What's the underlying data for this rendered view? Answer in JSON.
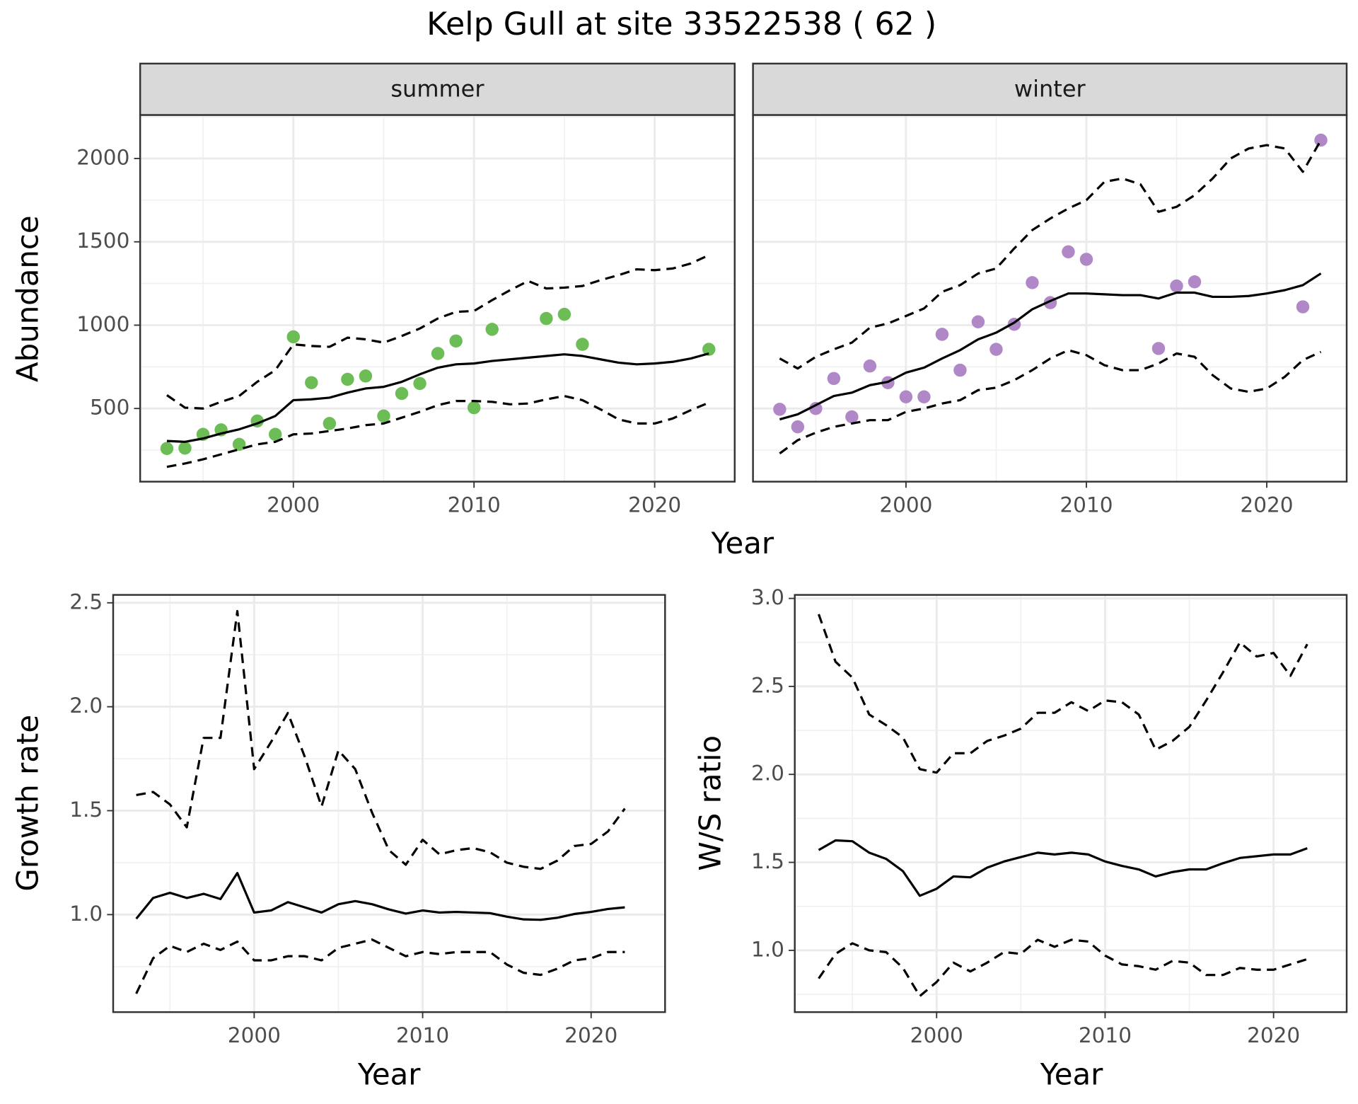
{
  "title": "Kelp Gull at site 33522538 ( 62 )",
  "chart_data": [
    {
      "type": "line",
      "strip": "summer",
      "xlabel": "Year",
      "ylabel": "Abundance",
      "grid": true,
      "minor_grid": true,
      "ytick_labels": true,
      "xlim": [
        1991.52,
        2024.43
      ],
      "ylim": [
        61,
        2261
      ],
      "xticks": [
        2000,
        2010,
        2020
      ],
      "yticks": [
        500,
        1000,
        1500,
        2000
      ],
      "x": [
        1993,
        1994,
        1995,
        1996,
        1997,
        1998,
        1999,
        2000,
        2001,
        2002,
        2003,
        2004,
        2005,
        2006,
        2007,
        2008,
        2009,
        2010,
        2011,
        2012,
        2013,
        2014,
        2015,
        2016,
        2017,
        2018,
        2019,
        2020,
        2021,
        2022,
        2023
      ],
      "series": [
        {
          "mode": "points",
          "color": "#6dbd57",
          "values": [
            260,
            262,
            345,
            372,
            285,
            425,
            345,
            930,
            655,
            410,
            675,
            695,
            455,
            590,
            650,
            830,
            905,
            505,
            975,
            null,
            null,
            1040,
            1065,
            885,
            null,
            null,
            null,
            null,
            null,
            null,
            855
          ]
        },
        {
          "mode": "line",
          "dash": "solid",
          "color": "#000000",
          "values": [
            305,
            300,
            320,
            350,
            375,
            410,
            455,
            550,
            555,
            565,
            595,
            620,
            630,
            660,
            705,
            745,
            765,
            770,
            785,
            795,
            805,
            815,
            825,
            815,
            795,
            775,
            765,
            770,
            780,
            800,
            830
          ]
        },
        {
          "mode": "line",
          "dash": "dashed",
          "color": "#000000",
          "values": [
            580,
            505,
            500,
            540,
            575,
            660,
            730,
            885,
            875,
            870,
            925,
            915,
            895,
            935,
            980,
            1040,
            1080,
            1085,
            1150,
            1210,
            1265,
            1220,
            1225,
            1235,
            1270,
            1300,
            1335,
            1330,
            1340,
            1370,
            1420
          ]
        },
        {
          "mode": "line",
          "dash": "dashed",
          "color": "#000000",
          "values": [
            150,
            170,
            195,
            225,
            255,
            285,
            300,
            345,
            350,
            365,
            380,
            400,
            410,
            445,
            480,
            520,
            545,
            545,
            540,
            525,
            530,
            555,
            575,
            550,
            495,
            435,
            410,
            410,
            440,
            490,
            535
          ]
        }
      ]
    },
    {
      "type": "line",
      "strip": "winter",
      "grid": true,
      "minor_grid": true,
      "ytick_labels": false,
      "xlim": [
        1991.52,
        2024.43
      ],
      "ylim": [
        61,
        2261
      ],
      "xticks": [
        2000,
        2010,
        2020
      ],
      "yticks": [
        500,
        1000,
        1500,
        2000
      ],
      "x": [
        1993,
        1994,
        1995,
        1996,
        1997,
        1998,
        1999,
        2000,
        2001,
        2002,
        2003,
        2004,
        2005,
        2006,
        2007,
        2008,
        2009,
        2010,
        2011,
        2012,
        2013,
        2014,
        2015,
        2016,
        2017,
        2018,
        2019,
        2020,
        2021,
        2022,
        2023
      ],
      "series": [
        {
          "mode": "points",
          "color": "#b088c8",
          "values": [
            495,
            390,
            500,
            680,
            450,
            755,
            655,
            570,
            570,
            945,
            730,
            1020,
            855,
            1005,
            1255,
            1135,
            1440,
            1395,
            null,
            null,
            null,
            860,
            1235,
            1260,
            null,
            null,
            null,
            null,
            null,
            1110,
            2110
          ]
        },
        {
          "mode": "line",
          "dash": "solid",
          "color": "#000000",
          "values": [
            435,
            465,
            520,
            575,
            595,
            640,
            660,
            715,
            745,
            800,
            850,
            915,
            955,
            1015,
            1095,
            1145,
            1190,
            1190,
            1185,
            1180,
            1180,
            1160,
            1195,
            1195,
            1170,
            1170,
            1175,
            1190,
            1210,
            1240,
            1310
          ]
        },
        {
          "mode": "line",
          "dash": "dashed",
          "color": "#000000",
          "values": [
            800,
            740,
            810,
            855,
            895,
            985,
            1010,
            1055,
            1100,
            1200,
            1240,
            1310,
            1340,
            1460,
            1570,
            1640,
            1700,
            1750,
            1860,
            1880,
            1845,
            1680,
            1710,
            1780,
            1880,
            2000,
            2060,
            2080,
            2060,
            1920,
            2110
          ]
        },
        {
          "mode": "line",
          "dash": "dashed",
          "color": "#000000",
          "values": [
            230,
            310,
            355,
            390,
            410,
            430,
            430,
            480,
            500,
            530,
            550,
            610,
            625,
            670,
            730,
            800,
            850,
            820,
            760,
            730,
            730,
            770,
            830,
            810,
            700,
            620,
            600,
            620,
            690,
            790,
            840
          ]
        }
      ]
    },
    {
      "type": "line",
      "xlabel": "Year",
      "ylabel": "Growth rate",
      "grid": true,
      "minor_grid": true,
      "ytick_labels": true,
      "xlim": [
        1991.63,
        2024.39
      ],
      "ylim": [
        0.531,
        2.538
      ],
      "xticks": [
        2000,
        2010,
        2020
      ],
      "yticks": [
        {
          "value": 1,
          "label": "1.0"
        },
        1.5,
        {
          "value": 2,
          "label": "2.0"
        },
        2.5
      ],
      "x": [
        1993,
        1994,
        1995,
        1996,
        1997,
        1998,
        1999,
        2000,
        2001,
        2002,
        2003,
        2004,
        2005,
        2006,
        2007,
        2008,
        2009,
        2010,
        2011,
        2012,
        2013,
        2014,
        2015,
        2016,
        2017,
        2018,
        2019,
        2020,
        2021,
        2022
      ],
      "series": [
        {
          "mode": "line",
          "dash": "solid",
          "color": "#000000",
          "values": [
            0.98,
            1.08,
            1.105,
            1.08,
            1.1,
            1.075,
            1.2,
            1.01,
            1.02,
            1.06,
            1.035,
            1.01,
            1.05,
            1.065,
            1.05,
            1.025,
            1.005,
            1.02,
            1.01,
            1.013,
            1.01,
            1.007,
            0.99,
            0.977,
            0.975,
            0.985,
            1.003,
            1.013,
            1.027,
            1.035
          ]
        },
        {
          "mode": "line",
          "dash": "dashed",
          "color": "#000000",
          "values": [
            1.575,
            1.59,
            1.53,
            1.42,
            1.85,
            1.85,
            2.46,
            1.7,
            1.83,
            1.97,
            1.76,
            1.52,
            1.79,
            1.7,
            1.49,
            1.31,
            1.24,
            1.36,
            1.29,
            1.31,
            1.32,
            1.3,
            1.25,
            1.23,
            1.22,
            1.26,
            1.33,
            1.34,
            1.4,
            1.51
          ]
        },
        {
          "mode": "line",
          "dash": "dashed",
          "color": "#000000",
          "values": [
            0.62,
            0.79,
            0.85,
            0.82,
            0.86,
            0.83,
            0.87,
            0.78,
            0.78,
            0.8,
            0.8,
            0.78,
            0.84,
            0.86,
            0.88,
            0.84,
            0.8,
            0.82,
            0.81,
            0.82,
            0.82,
            0.82,
            0.76,
            0.72,
            0.71,
            0.74,
            0.78,
            0.79,
            0.82,
            0.82
          ]
        }
      ]
    },
    {
      "type": "line",
      "xlabel": "Year",
      "ylabel": "W/S ratio",
      "grid": true,
      "minor_grid": true,
      "ytick_labels": true,
      "xlim": [
        1991.58,
        2024.34
      ],
      "ylim": [
        0.649,
        3.02
      ],
      "xticks": [
        2000,
        2010,
        2020
      ],
      "yticks": [
        {
          "value": 1,
          "label": "1.0"
        },
        1.5,
        {
          "value": 2,
          "label": "2.0"
        },
        2.5,
        {
          "value": 3,
          "label": "3.0"
        }
      ],
      "x": [
        1993,
        1994,
        1995,
        1996,
        1997,
        1998,
        1999,
        2000,
        2001,
        2002,
        2003,
        2004,
        2005,
        2006,
        2007,
        2008,
        2009,
        2010,
        2011,
        2012,
        2013,
        2014,
        2015,
        2016,
        2017,
        2018,
        2019,
        2020,
        2021,
        2022
      ],
      "series": [
        {
          "mode": "line",
          "dash": "solid",
          "color": "#000000",
          "values": [
            1.57,
            1.625,
            1.62,
            1.555,
            1.52,
            1.45,
            1.31,
            1.35,
            1.42,
            1.415,
            1.47,
            1.505,
            1.53,
            1.555,
            1.545,
            1.555,
            1.545,
            1.505,
            1.48,
            1.46,
            1.42,
            1.445,
            1.46,
            1.46,
            1.495,
            1.525,
            1.535,
            1.545,
            1.545,
            1.58
          ]
        },
        {
          "mode": "line",
          "dash": "dashed",
          "color": "#000000",
          "values": [
            2.91,
            2.64,
            2.55,
            2.34,
            2.28,
            2.21,
            2.03,
            2.01,
            2.12,
            2.12,
            2.19,
            2.22,
            2.26,
            2.35,
            2.35,
            2.41,
            2.36,
            2.42,
            2.41,
            2.34,
            2.14,
            2.19,
            2.27,
            2.42,
            2.58,
            2.75,
            2.67,
            2.69,
            2.56,
            2.74
          ]
        },
        {
          "mode": "line",
          "dash": "dashed",
          "color": "#000000",
          "values": [
            0.84,
            0.98,
            1.04,
            1.0,
            0.99,
            0.9,
            0.74,
            0.82,
            0.93,
            0.88,
            0.93,
            0.99,
            0.98,
            1.06,
            1.02,
            1.06,
            1.05,
            0.97,
            0.92,
            0.91,
            0.89,
            0.94,
            0.93,
            0.86,
            0.86,
            0.9,
            0.89,
            0.89,
            0.92,
            0.95
          ]
        }
      ]
    }
  ]
}
